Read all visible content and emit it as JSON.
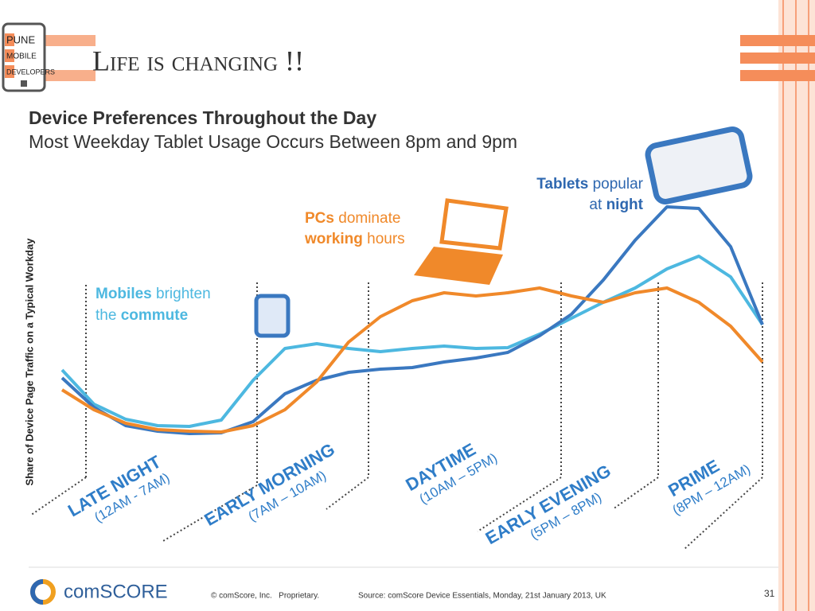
{
  "slide": {
    "logo": [
      "PUNE",
      "MOBILE",
      "DEVELOPERS"
    ],
    "title": "Life is changing !!"
  },
  "chart_data": {
    "type": "line",
    "title": "Device Preferences Throughout the Day",
    "subtitle": "Most Weekday Tablet Usage Occurs Between 8pm and 9pm",
    "y_label": "Share of Device Page Traffic on a Typical Workday",
    "categories": [
      null,
      null,
      null,
      null,
      null,
      null,
      null,
      null,
      null,
      null,
      null,
      null,
      null,
      null,
      null,
      null,
      null,
      null,
      null,
      null,
      null,
      null,
      null
    ],
    "ylim": [
      0,
      300
    ],
    "series": [
      {
        "name": "Mobiles",
        "color": "#4db8e0",
        "values": [
          95,
          52,
          33,
          25,
          24,
          32,
          82,
          122,
          128,
          122,
          118,
          122,
          125,
          122,
          123,
          140,
          160,
          180,
          198,
          222,
          238,
          212,
          152
        ]
      },
      {
        "name": "Tablets",
        "color": "#3a78c0",
        "values": [
          85,
          48,
          25,
          18,
          15,
          16,
          30,
          65,
          82,
          92,
          96,
          98,
          105,
          110,
          117,
          138,
          165,
          208,
          258,
          300,
          298,
          250,
          152
        ]
      },
      {
        "name": "PCs",
        "color": "#f0892a",
        "values": [
          70,
          45,
          28,
          20,
          18,
          17,
          25,
          45,
          80,
          130,
          162,
          182,
          192,
          188,
          192,
          198,
          188,
          180,
          192,
          198,
          180,
          150,
          105
        ]
      }
    ],
    "annotations": {
      "mobiles": [
        "Mobiles",
        "brighten",
        "the",
        "commute"
      ],
      "pcs": [
        "PCs",
        "dominate",
        "working",
        "hours"
      ],
      "tablets": [
        "Tablets",
        "popular",
        "at",
        "night"
      ]
    },
    "dayparts": [
      {
        "name": "LATE NIGHT",
        "hours": "(12AM - 7AM)"
      },
      {
        "name": "EARLY MORNING",
        "hours": "(7AM – 10AM)"
      },
      {
        "name": "DAYTIME",
        "hours": "(10AM – 5PM)"
      },
      {
        "name": "EARLY EVENING",
        "hours": "(5PM – 8PM)"
      },
      {
        "name": "PRIME",
        "hours": "(8PM – 12AM)"
      }
    ]
  },
  "footer": {
    "brand": "comSCORE",
    "copyright": "© comScore, Inc.   Proprietary.",
    "source": "Source: comScore Device Essentials, Monday, 21st January 2013, UK",
    "page": "31"
  }
}
